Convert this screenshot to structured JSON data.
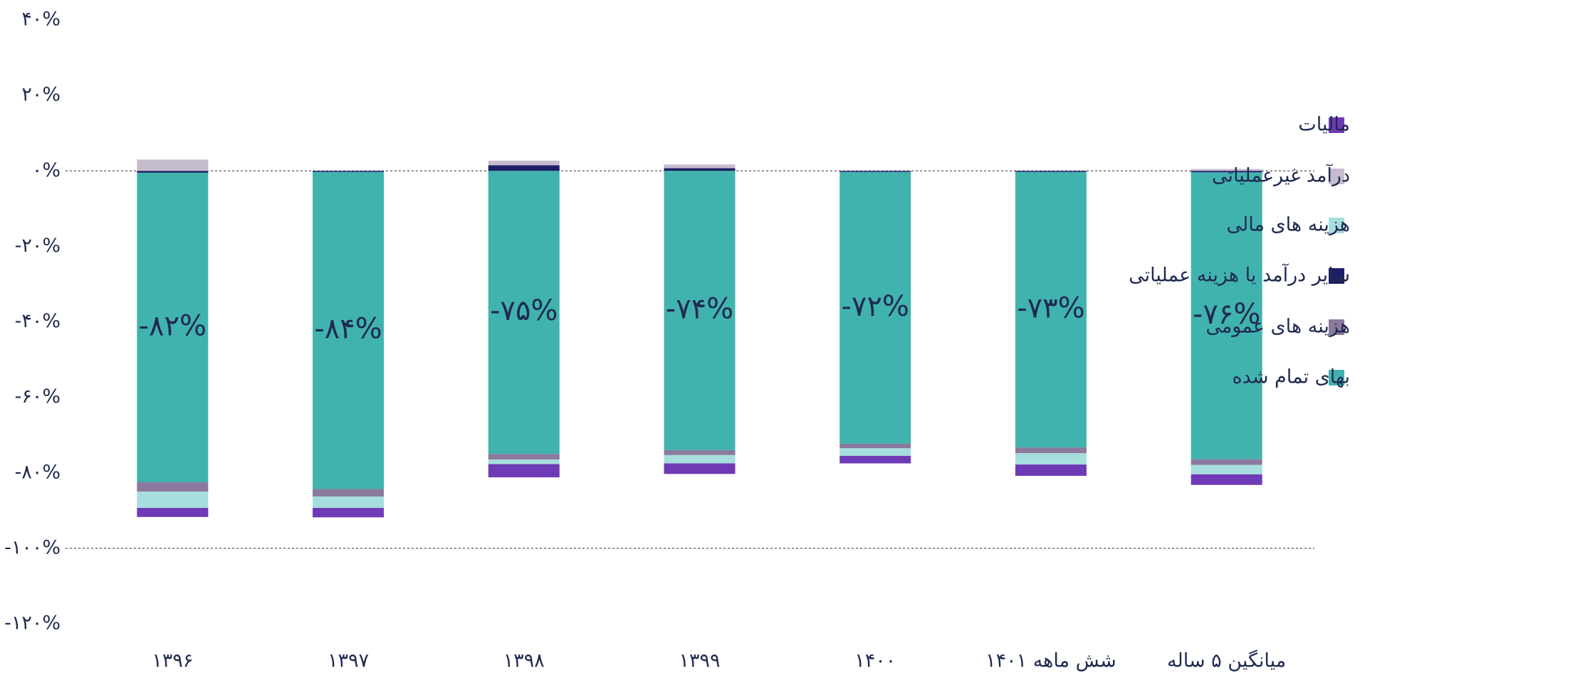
{
  "chart_data": {
    "type": "stacked_bar",
    "categories": [
      "۱۳۹۶",
      "۱۳۹۷",
      "۱۳۹۸",
      "۱۳۹۹",
      "۱۴۰۰",
      "شش ماهه ۱۴۰۱",
      "میانگین ۵ ساله"
    ],
    "series": [
      {
        "name": "مالیات",
        "color": "#6f3ab5",
        "values": [
          -2.4,
          -2.5,
          -3.5,
          -2.8,
          -2,
          -3,
          -2.8
        ]
      },
      {
        "name": "درآمد غیرعملیاتی",
        "color": "#c5bccf",
        "values": [
          3,
          0,
          1.2,
          1,
          0,
          0,
          0.5
        ]
      },
      {
        "name": "هزینه های مالی",
        "color": "#a6dede",
        "values": [
          -4.3,
          -3,
          -1.2,
          -2.2,
          -2,
          -3,
          -2.5
        ]
      },
      {
        "name": "سایر درآمد یا هزینه عملیاتی",
        "color": "#1c1f66",
        "values": [
          -0.5,
          -0.3,
          1.5,
          0.7,
          -0.3,
          -0.3,
          -0.4
        ]
      },
      {
        "name": "هزینه های عمومی",
        "color": "#8a7a9e",
        "values": [
          -2.5,
          -2,
          -1.5,
          -1.3,
          -1.2,
          -1.5,
          -1.5
        ]
      },
      {
        "name": "بهای تمام شده",
        "color": "#41b3ae",
        "values": [
          -82,
          -84,
          -75,
          -74,
          -72,
          -73,
          -76
        ],
        "value_labels": [
          "-۸۲%",
          "-۸۴%",
          "-۷۵%",
          "-۷۴%",
          "-۷۲%",
          "-۷۳%",
          "-۷۶%"
        ]
      }
    ],
    "ylim": [
      -120,
      40
    ],
    "yticks": [
      {
        "value": 40,
        "label": "۴۰%"
      },
      {
        "value": 20,
        "label": "۲۰%"
      },
      {
        "value": 0,
        "label": "۰%"
      },
      {
        "value": -20,
        "label": "-۲۰%"
      },
      {
        "value": -40,
        "label": "-۴۰%"
      },
      {
        "value": -60,
        "label": "-۶۰%"
      },
      {
        "value": -80,
        "label": "-۸۰%"
      },
      {
        "value": -100,
        "label": "-۱۰۰%"
      },
      {
        "value": -120,
        "label": "-۱۲۰%"
      }
    ],
    "dashed_lines": [
      0,
      -100
    ],
    "legend": "right"
  }
}
